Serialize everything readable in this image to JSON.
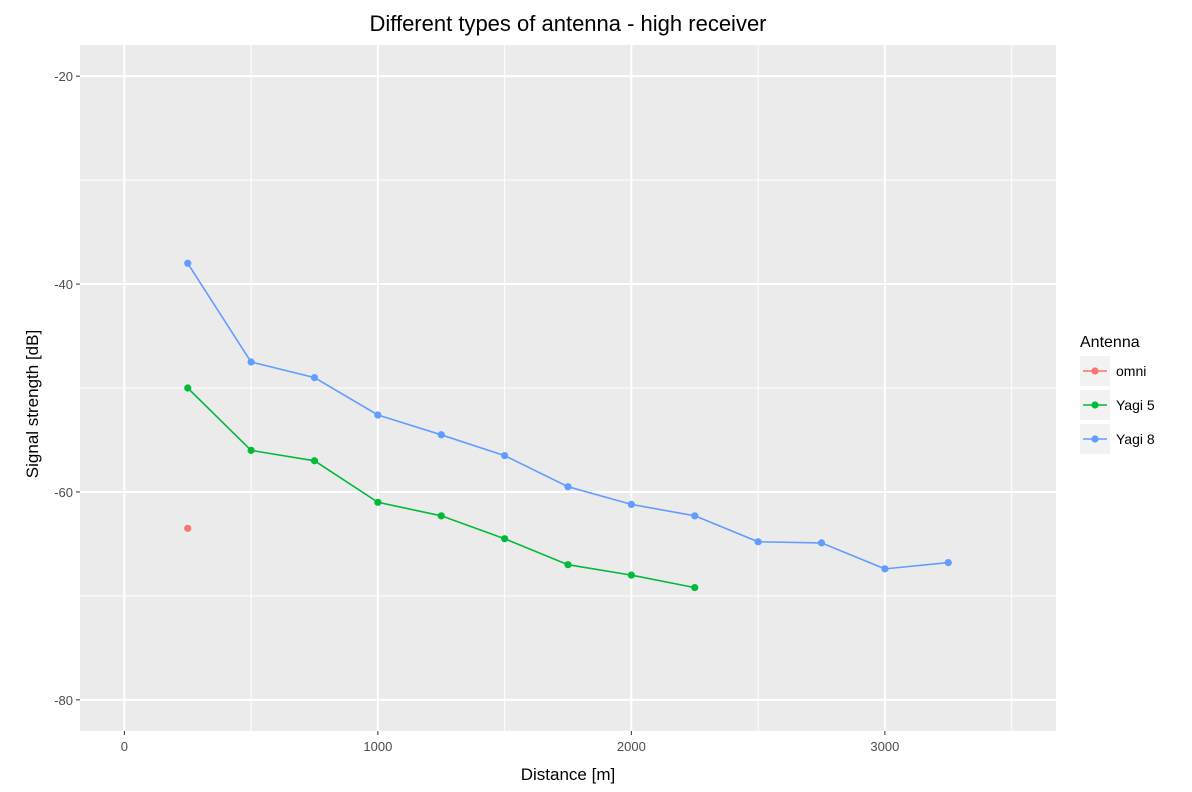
{
  "chart_data": {
    "type": "line",
    "title": "Different types of antenna - high receiver",
    "xlabel": "Distance [m]",
    "ylabel": "Signal strength [dB]",
    "xlim": [
      -175,
      3675
    ],
    "ylim": [
      -83,
      -17
    ],
    "x_ticks": [
      0,
      1000,
      2000,
      3000
    ],
    "x_tick_labels": [
      "0",
      "1000",
      "2000",
      "3000"
    ],
    "x_minor_ticks": [
      500,
      1500,
      2500,
      3500
    ],
    "y_ticks": [
      -20,
      -40,
      -60,
      -80
    ],
    "y_tick_labels": [
      "-20",
      "-40",
      "-60",
      "-80"
    ],
    "y_minor_ticks": [
      -30,
      -50,
      -70
    ],
    "grid": true,
    "panel_background": "#ebebeb",
    "grid_color": "#ffffff",
    "legend": {
      "title": "Antenna",
      "position": "right"
    },
    "series": [
      {
        "name": "omni",
        "color": "#f8766d",
        "x": [
          250
        ],
        "y": [
          -63.5
        ]
      },
      {
        "name": "Yagi 5",
        "color": "#00ba38",
        "x": [
          250,
          500,
          750,
          1000,
          1250,
          1500,
          1750,
          2000,
          2250
        ],
        "y": [
          -50.0,
          -56.0,
          -57.0,
          -61.0,
          -62.3,
          -64.5,
          -67.0,
          -68.0,
          -69.2
        ]
      },
      {
        "name": "Yagi 8",
        "color": "#619cff",
        "x": [
          250,
          500,
          750,
          1000,
          1250,
          1500,
          1750,
          2000,
          2250,
          2500,
          2750,
          3000,
          3250
        ],
        "y": [
          -38.0,
          -47.5,
          -49.0,
          -52.6,
          -54.5,
          -56.5,
          -59.5,
          -61.2,
          -62.3,
          -64.8,
          -64.9,
          -67.4,
          -66.8
        ]
      }
    ]
  }
}
